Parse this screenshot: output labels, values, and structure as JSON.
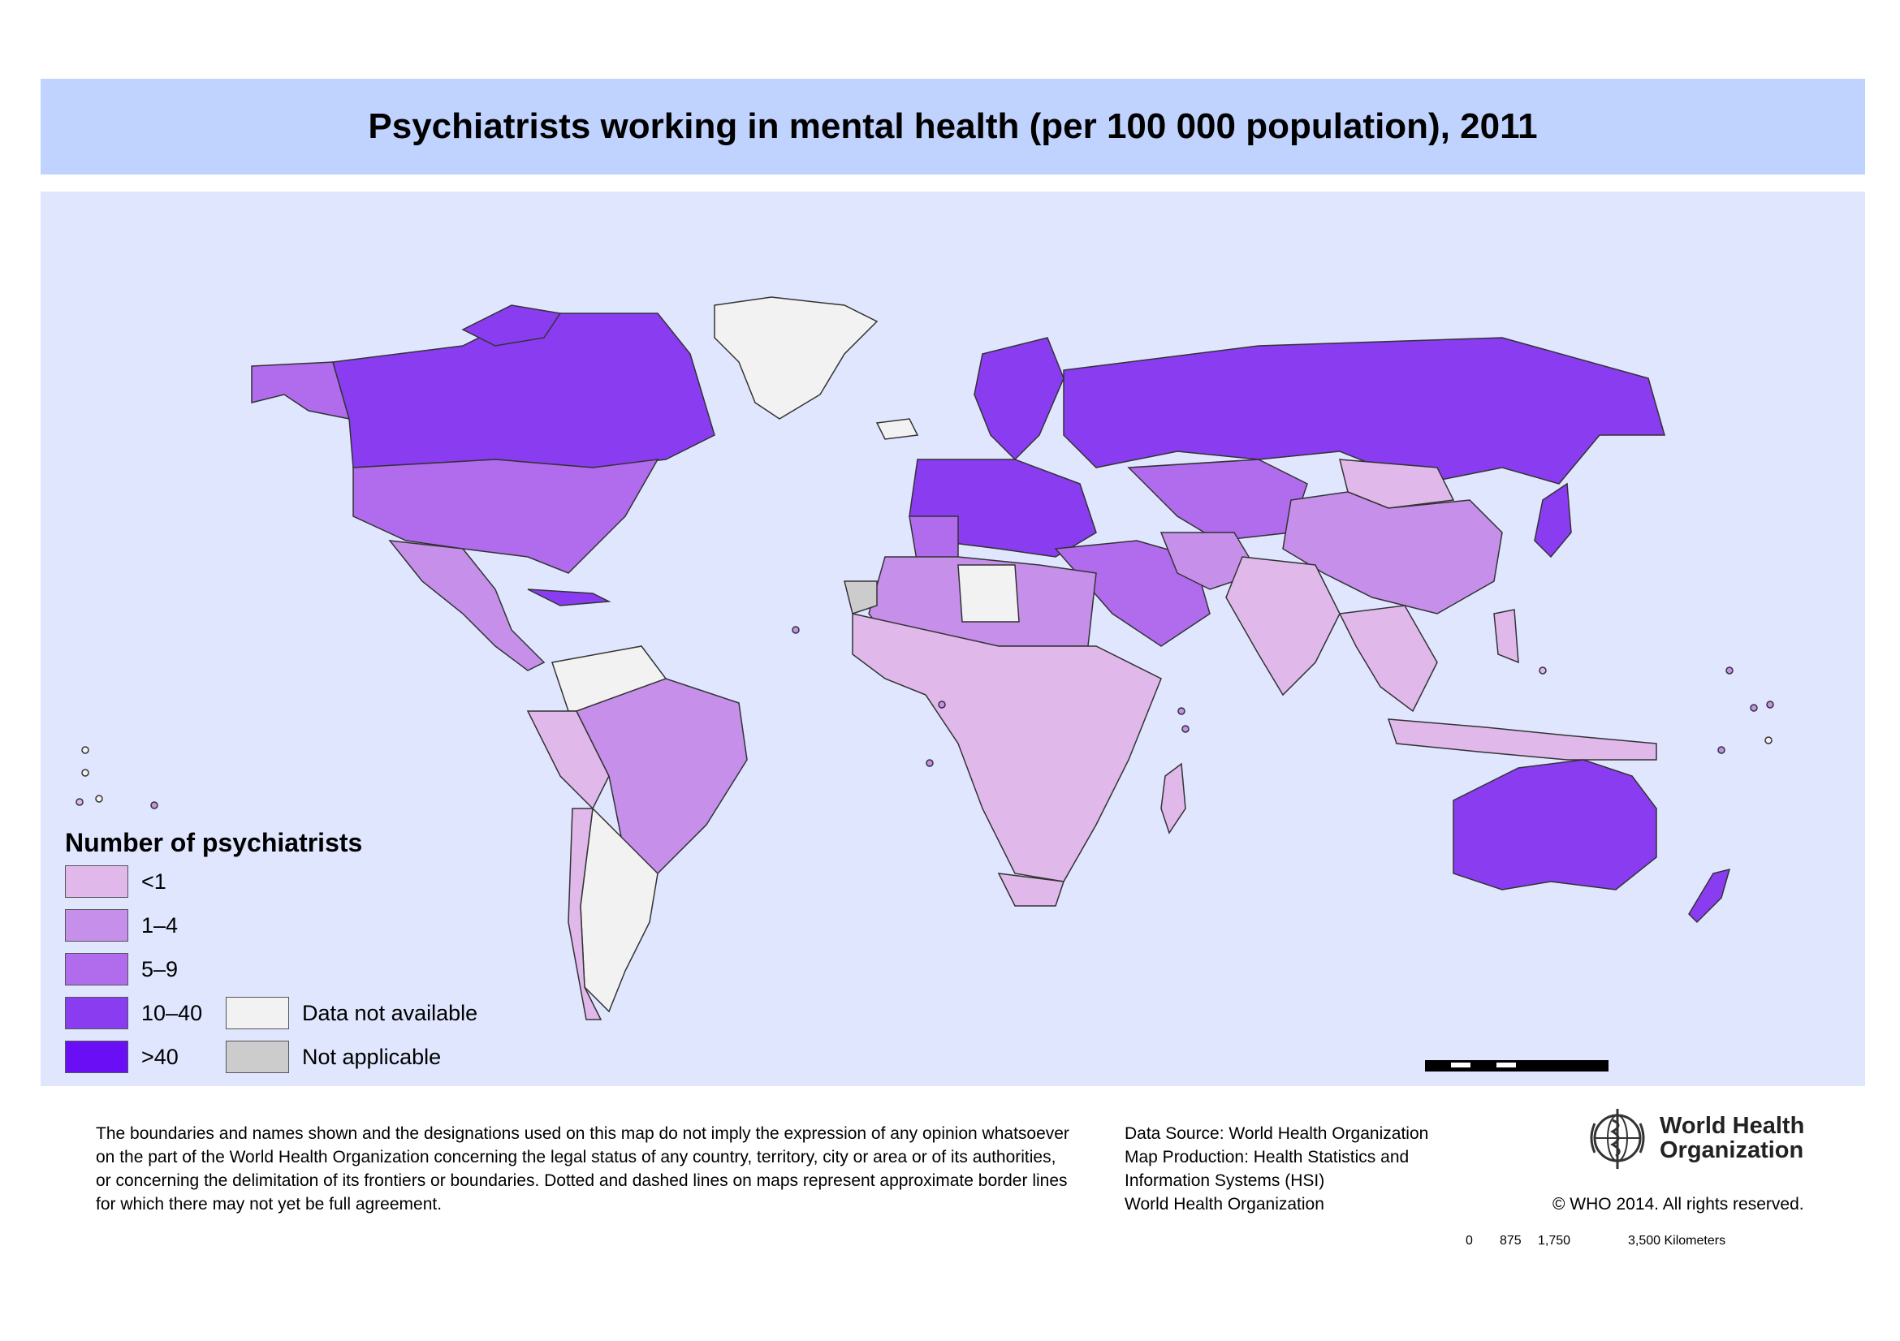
{
  "title": "Psychiatrists working in mental health (per 100 000 population), 2011",
  "legend": {
    "title": "Number of psychiatrists",
    "items": [
      {
        "label": "<1",
        "color": "#e0b8ea"
      },
      {
        "label": "1–4",
        "color": "#c58fea"
      },
      {
        "label": "5–9",
        "color": "#b06cec"
      },
      {
        "label": "10–40",
        "color": "#8a3cf0"
      },
      {
        "label": ">40",
        "color": "#6a0ef5"
      }
    ],
    "other_items": [
      {
        "label": "Data not available",
        "color": "#f2f2f2"
      },
      {
        "label": "Not applicable",
        "color": "#cccccc"
      }
    ]
  },
  "scale": {
    "labels": [
      "0",
      "875",
      "1,750",
      "3,500 Kilometers"
    ]
  },
  "disclaimer": [
    "The boundaries and names shown and the designations used on this map do not imply the expression of any opinion whatsoever",
    "on the part of the World Health Organization concerning the legal status of any country, territory, city or area or of its authorities,",
    "or concerning the delimitation of its frontiers or boundaries. Dotted and dashed lines on maps represent approximate border lines",
    "for which there may not yet be full agreement."
  ],
  "source": [
    "Data Source: World Health Organization",
    "Map Production: Health Statistics and",
    "Information Systems (HSI)",
    "World Health Organization"
  ],
  "organization": [
    "World Health",
    "Organization"
  ],
  "copyright": "© WHO 2014. All rights reserved.",
  "icons": {
    "logo": "who-emblem-icon"
  }
}
